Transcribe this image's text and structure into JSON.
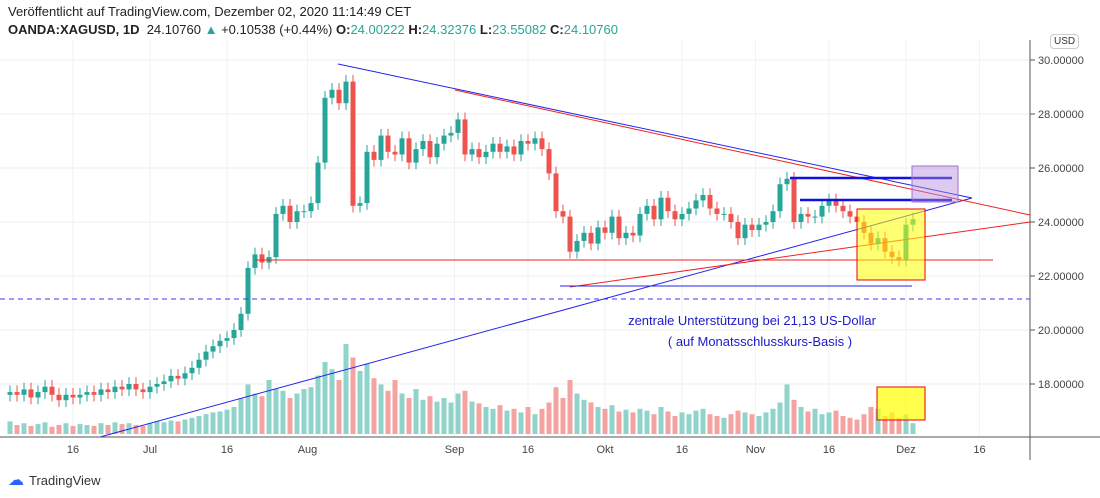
{
  "header": {
    "published": "Veröffentlicht auf TradingView.com, Dezember 02, 2020 11:14:49 CET",
    "symbol": "OANDA:XAGUSD, 1D",
    "last": "24.10760",
    "change": "+0.10538 (+0.44%)",
    "o_label": "O:",
    "o": "24.00222",
    "h_label": "H:",
    "h": "24.32376",
    "l_label": "L:",
    "l": "23.55082",
    "c_label": "C:",
    "c": "24.10760"
  },
  "currency": "USD",
  "annotation": {
    "line1": "zentrale Unterstützung bei 21,13 US-Dollar",
    "line2": "( auf Monatsschlusskurs-Basis )"
  },
  "logo": "TradingView",
  "colors": {
    "up": "#26a69a",
    "down": "#ef5350",
    "up_vol": "#8fd3cb",
    "down_vol": "#f5a3a1"
  },
  "chart_data": {
    "type": "candlestick",
    "ylim": [
      16.5,
      30.2
    ],
    "y_ticks": [
      "30.00000",
      "28.00000",
      "26.00000",
      "24.00000",
      "22.00000",
      "20.00000",
      "18.00000"
    ],
    "y_tick_values": [
      30,
      28,
      26,
      24,
      22,
      20,
      18
    ],
    "x_ticks": [
      "16",
      "Jul",
      "16",
      "Aug",
      "Sep",
      "16",
      "Okt",
      "16",
      "Nov",
      "16",
      "Dez",
      "16"
    ],
    "x_tick_bars": [
      9,
      20,
      31,
      42.5,
      63.5,
      74,
      85,
      96,
      106.5,
      117,
      128,
      138.5
    ],
    "closes": [
      17.7,
      17.6,
      17.8,
      17.5,
      17.7,
      17.9,
      17.6,
      17.4,
      17.6,
      17.5,
      17.6,
      17.7,
      17.6,
      17.8,
      17.7,
      17.9,
      17.8,
      18.0,
      17.8,
      17.7,
      17.9,
      18.0,
      18.1,
      18.3,
      18.2,
      18.4,
      18.6,
      18.9,
      19.2,
      19.4,
      19.6,
      19.7,
      20.0,
      20.6,
      22.3,
      22.8,
      22.5,
      22.7,
      24.3,
      24.6,
      24.0,
      24.4,
      24.4,
      24.7,
      26.2,
      28.6,
      28.9,
      28.4,
      29.2,
      24.6,
      24.7,
      26.6,
      26.3,
      27.2,
      26.6,
      26.5,
      27.1,
      26.2,
      26.7,
      27.0,
      26.4,
      26.9,
      27.2,
      27.3,
      27.8,
      26.5,
      26.7,
      26.4,
      26.6,
      26.9,
      26.6,
      26.8,
      26.5,
      27.0,
      26.9,
      27.1,
      26.7,
      25.8,
      24.4,
      24.2,
      22.9,
      23.3,
      23.6,
      23.2,
      23.8,
      23.6,
      24.2,
      23.4,
      23.6,
      23.5,
      24.3,
      24.6,
      24.1,
      24.9,
      24.4,
      24.1,
      24.3,
      24.5,
      24.8,
      25.0,
      24.5,
      24.3,
      24.3,
      24.0,
      23.4,
      23.9,
      23.7,
      23.9,
      24.0,
      24.4,
      25.4,
      25.6,
      24.0,
      24.3,
      24.2,
      24.2,
      24.6,
      24.8,
      24.6,
      24.4,
      24.2,
      24.0,
      23.6,
      23.2,
      23.4,
      22.9,
      22.7,
      22.6,
      23.9,
      24.1
    ],
    "volumes": [
      14,
      10,
      12,
      9,
      11,
      13,
      8,
      10,
      12,
      9,
      11,
      10,
      9,
      12,
      10,
      13,
      11,
      12,
      10,
      9,
      12,
      14,
      13,
      15,
      14,
      16,
      18,
      20,
      22,
      24,
      25,
      27,
      30,
      40,
      55,
      45,
      42,
      60,
      50,
      48,
      40,
      45,
      50,
      52,
      65,
      80,
      72,
      60,
      100,
      85,
      70,
      78,
      62,
      55,
      48,
      60,
      45,
      40,
      50,
      38,
      42,
      36,
      40,
      35,
      45,
      48,
      36,
      34,
      30,
      28,
      32,
      26,
      28,
      24,
      30,
      22,
      28,
      35,
      52,
      40,
      60,
      45,
      38,
      35,
      30,
      28,
      32,
      25,
      27,
      24,
      28,
      26,
      22,
      30,
      25,
      20,
      24,
      22,
      26,
      28,
      22,
      20,
      18,
      22,
      26,
      24,
      22,
      20,
      24,
      28,
      35,
      55,
      38,
      30,
      25,
      28,
      22,
      24,
      26,
      20,
      18,
      16,
      22,
      30,
      28,
      20,
      24,
      18,
      22,
      12
    ]
  }
}
